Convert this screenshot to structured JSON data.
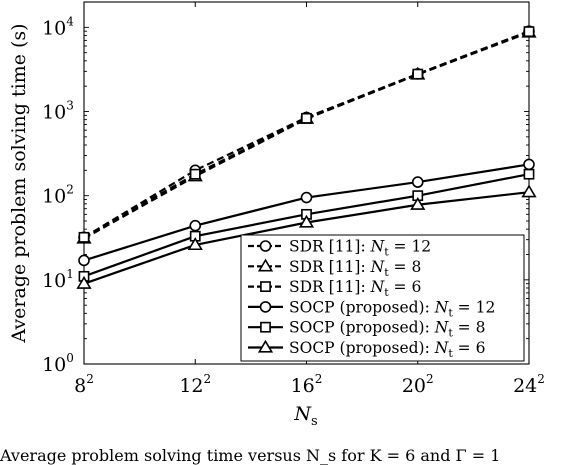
{
  "chart_data": {
    "type": "line",
    "xlabel": "N_s",
    "ylabel": "Average problem solving time (s)",
    "x_ticks": [
      {
        "base": "8",
        "exp": "2"
      },
      {
        "base": "12",
        "exp": "2"
      },
      {
        "base": "16",
        "exp": "2"
      },
      {
        "base": "20",
        "exp": "2"
      },
      {
        "base": "24",
        "exp": "2"
      }
    ],
    "y_ticks": [
      {
        "base": "10",
        "exp": "0"
      },
      {
        "base": "10",
        "exp": "1"
      },
      {
        "base": "10",
        "exp": "2"
      },
      {
        "base": "10",
        "exp": "3"
      },
      {
        "base": "10",
        "exp": "4"
      }
    ],
    "x": [
      64,
      144,
      256,
      400,
      576
    ],
    "xlim": [
      64,
      576
    ],
    "ylim": [
      1,
      20000
    ],
    "yscale": "log",
    "grid": false,
    "legend_position": "bottom-right",
    "series": [
      {
        "name": "SDR [11]: N_t = 12",
        "label_prefix": "SDR [11]: ",
        "sub": "t",
        "nt": "12",
        "marker": "circle",
        "dashed": true,
        "values": [
          32,
          200,
          850,
          2800,
          9000
        ]
      },
      {
        "name": "SDR [11]: N_t = 8",
        "label_prefix": "SDR [11]: ",
        "sub": "t",
        "nt": "8",
        "marker": "triangle",
        "dashed": true,
        "values": [
          31,
          170,
          820,
          2750,
          8700
        ]
      },
      {
        "name": "SDR [11]: N_t = 6",
        "label_prefix": "SDR [11]: ",
        "sub": "t",
        "nt": "6",
        "marker": "square",
        "dashed": true,
        "values": [
          32,
          180,
          830,
          2780,
          8900
        ]
      },
      {
        "name": "SOCP (proposed): N_t = 12",
        "label_prefix": "SOCP (proposed): ",
        "sub": "t",
        "nt": "12",
        "marker": "circle",
        "dashed": false,
        "values": [
          17,
          44,
          95,
          145,
          235
        ]
      },
      {
        "name": "SOCP (proposed): N_t = 8",
        "label_prefix": "SOCP (proposed): ",
        "sub": "t",
        "nt": "8",
        "marker": "square",
        "dashed": false,
        "values": [
          11,
          33,
          60,
          100,
          180
        ]
      },
      {
        "name": "SOCP (proposed): N_t = 6",
        "label_prefix": "SOCP (proposed): ",
        "sub": "t",
        "nt": "6",
        "marker": "triangle",
        "dashed": false,
        "values": [
          9,
          26,
          48,
          78,
          110
        ]
      }
    ]
  },
  "caption": "Average problem solving time versus N_s for K = 6 and Γ = 1"
}
